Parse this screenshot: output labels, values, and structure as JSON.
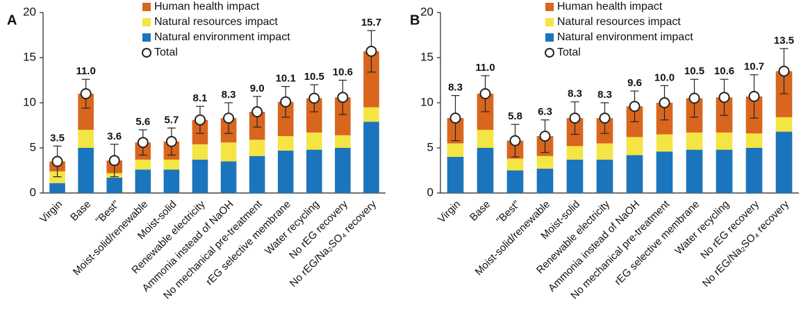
{
  "chart_data": [
    {
      "type": "bar",
      "stacked": true,
      "label": "A",
      "categories": [
        "Virgin",
        "Base",
        "\"Best\"",
        "Moist-solid/renewable",
        "Moist-solid",
        "Renewable electricity",
        "Ammonia instead of NaOH",
        "No mechanical pre-treatment",
        "rEG selective membrane",
        "Water recycling",
        "No rEG recovery",
        "No rEG/Na₂SO₄ recovery"
      ],
      "series": [
        {
          "name": "Natural environment impact",
          "color": "#1b75bc",
          "values": [
            1.1,
            5.0,
            1.7,
            2.6,
            2.6,
            3.7,
            3.5,
            4.1,
            4.7,
            4.8,
            5.0,
            7.9
          ]
        },
        {
          "name": "Natural resources impact",
          "color": "#f4e545",
          "values": [
            1.3,
            2.0,
            0.5,
            1.1,
            1.1,
            1.7,
            2.1,
            1.8,
            1.6,
            1.9,
            1.4,
            1.6
          ]
        },
        {
          "name": "Human health impact",
          "color": "#d8661e",
          "values": [
            1.1,
            4.0,
            1.4,
            1.9,
            2.0,
            2.7,
            2.7,
            3.1,
            3.8,
            3.8,
            4.2,
            6.2
          ]
        }
      ],
      "total": {
        "name": "Total",
        "values": [
          3.5,
          11.0,
          3.6,
          5.6,
          5.7,
          8.1,
          8.3,
          9.0,
          10.1,
          10.5,
          10.6,
          15.7
        ],
        "value_labels": [
          "3.5",
          "11.0",
          "3.6",
          "5.6",
          "5.7",
          "8.1",
          "8.3",
          "9.0",
          "10.1",
          "10.5",
          "10.6",
          "15.7"
        ],
        "errors": [
          1.7,
          1.6,
          1.8,
          1.4,
          1.5,
          1.5,
          1.7,
          1.7,
          1.7,
          1.5,
          1.9,
          2.3
        ]
      },
      "ylim": [
        0,
        20
      ],
      "yticks": [
        0,
        5,
        10,
        15,
        20
      ]
    },
    {
      "type": "bar",
      "stacked": true,
      "label": "B",
      "categories": [
        "Virgin",
        "Base",
        "\"Best\"",
        "Moist-solid/renewable",
        "Moist-solid",
        "Renewable electricity",
        "Ammonia instead of NaOH",
        "No mechanical pre-treatment",
        "rEG selective membrane",
        "Water recycling",
        "No rEG recovery",
        "No rEG/Na₂SO₄ recovery"
      ],
      "series": [
        {
          "name": "Natural environment impact",
          "color": "#1b75bc",
          "values": [
            4.0,
            5.0,
            2.5,
            2.7,
            3.7,
            3.7,
            4.2,
            4.6,
            4.8,
            4.8,
            5.0,
            6.8
          ]
        },
        {
          "name": "Natural resources impact",
          "color": "#f4e545",
          "values": [
            1.5,
            2.0,
            1.3,
            1.4,
            1.5,
            1.8,
            2.0,
            1.9,
            1.9,
            1.9,
            1.6,
            1.6
          ]
        },
        {
          "name": "Human health impact",
          "color": "#d8661e",
          "values": [
            2.8,
            4.0,
            2.0,
            2.2,
            3.1,
            2.8,
            3.4,
            3.5,
            3.8,
            3.9,
            4.1,
            5.1
          ]
        }
      ],
      "total": {
        "name": "Total",
        "values": [
          8.3,
          11.0,
          5.8,
          6.3,
          8.3,
          8.3,
          9.6,
          10.0,
          10.5,
          10.6,
          10.7,
          13.5
        ],
        "value_labels": [
          "8.3",
          "11.0",
          "5.8",
          "6.3",
          "8.3",
          "8.3",
          "9.6",
          "10.0",
          "10.5",
          "10.6",
          "10.7",
          "13.5"
        ],
        "errors": [
          2.5,
          2.0,
          1.8,
          1.8,
          1.8,
          1.7,
          1.7,
          1.9,
          2.1,
          2.0,
          2.4,
          2.5
        ]
      },
      "ylim": [
        0,
        20
      ],
      "yticks": [
        0,
        5,
        10,
        15,
        20
      ]
    }
  ]
}
